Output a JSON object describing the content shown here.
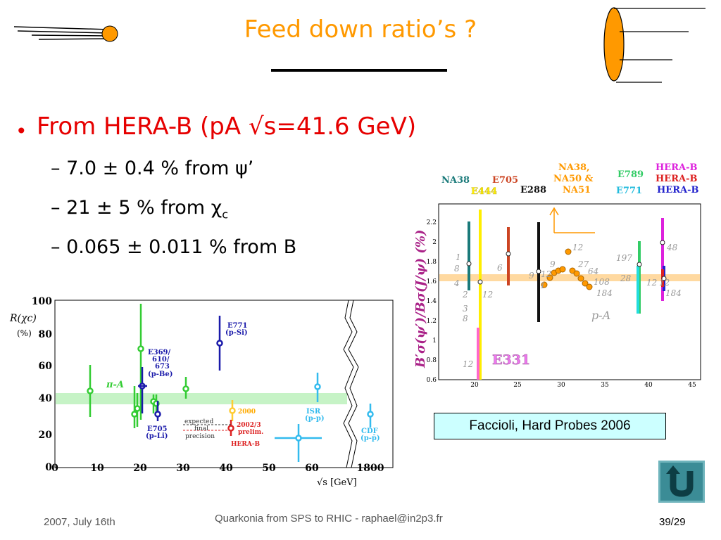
{
  "slide": {
    "title": "Feed down ratio’s ?",
    "bullet": "From HERA-B (pA √s=41.6 GeV)",
    "sub_items": [
      {
        "pre": "7.0 ± 0.4 % from ψ’",
        "sub": ""
      },
      {
        "pre": "21 ± 5 % from χ",
        "sub": "c"
      },
      {
        "pre": "0.065 ± 0.011 % from B",
        "sub": ""
      }
    ],
    "caption": "Faccioli, Hard Probes 2006",
    "footer_date": "2007, July 16th",
    "footer_center": "Quarkonia from SPS to RHIC - raphael@in2p3.fr",
    "page_number": "39/29",
    "accent_title": "#ff9900",
    "accent_bullet": "#e60000"
  },
  "left_plot": {
    "y_label_main": "R(χc)",
    "y_unit": "(%)",
    "x_label": "√s [GeV]",
    "y_ticks": [
      "0",
      "20",
      "40",
      "60",
      "80",
      "100"
    ],
    "x_ticks": [
      "0",
      "10",
      "20",
      "30",
      "40",
      "50",
      "60",
      "1800"
    ],
    "labels": {
      "pia": "π-A",
      "e369": "E369/",
      "e369b": "610/",
      "e369c": "673",
      "e369d": "(p-Be)",
      "e771": "E771",
      "e771b": "(p-Si)",
      "e705": "E705",
      "e705b": "(p-Li)",
      "y2000": "2000",
      "prelim1": "2002/3",
      "prelim2": "prelim.",
      "herab": "HERA-B",
      "exp1": "expected",
      "exp2": "final",
      "exp3": "precision",
      "isr": "ISR",
      "isrb": "(p-p)",
      "cdf": "CDF",
      "cdfb": "(p-p̄)"
    }
  },
  "right_plot": {
    "y_label": "B′σ(ψ′)/Bσ(J/ψ) (%)",
    "y_ticks": [
      "0.6",
      "0.8",
      "1",
      "1.2",
      "1.4",
      "1.6",
      "1.8",
      "2",
      "2.2"
    ],
    "x_ticks": [
      "20",
      "25",
      "30",
      "35",
      "40",
      "45"
    ],
    "experiments": [
      "NA38",
      "E705",
      "E444",
      "E288",
      "NA38,",
      "NA50 &",
      "NA51",
      "E789",
      "E771",
      "HERA-B",
      "HERA-B",
      "HERA-B",
      "E331"
    ],
    "region_label": "p-A",
    "point_labels": [
      "1",
      "8",
      "4",
      "2",
      "3",
      "8",
      "6",
      "12",
      "12",
      "9",
      "12",
      "1",
      "9",
      "12",
      "27",
      "64",
      "108",
      "184",
      "197",
      "28",
      "12",
      "48",
      "184",
      "12"
    ]
  }
}
